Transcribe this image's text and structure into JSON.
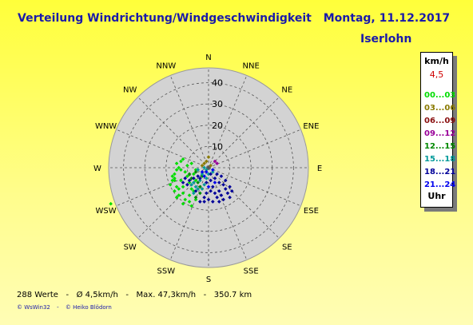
{
  "header": {
    "title": "Verteilung Windrichtung/Windgeschwindigkeit",
    "date": "Montag, 11.12.2017",
    "location": "Iserlohn"
  },
  "legend": {
    "unit": "km/h",
    "average": "4,5",
    "classes": [
      {
        "label": "00...03",
        "color": "#00dd00"
      },
      {
        "label": "03...06",
        "color": "#8a7a00"
      },
      {
        "label": "06...09",
        "color": "#8a1010"
      },
      {
        "label": "09...12",
        "color": "#990099"
      },
      {
        "label": "12...15",
        "color": "#008800"
      },
      {
        "label": "15...18",
        "color": "#009999"
      },
      {
        "label": "18...21",
        "color": "#000099"
      },
      {
        "label": "21...24",
        "color": "#0000ee"
      }
    ],
    "footer_label": "Uhr"
  },
  "footer": {
    "count": "288 Werte",
    "avg": "Ø 4,5km/h",
    "max": "Max. 47,3km/h",
    "distance": "350.7 km",
    "sep": "-"
  },
  "copyright": {
    "a": "© WsWin32",
    "sep": "-",
    "b": "© Heiko Blödorn"
  },
  "chart_data": {
    "type": "scatter",
    "subtype": "polar-wind-rose",
    "directions": [
      "N",
      "NNE",
      "NE",
      "ENE",
      "E",
      "ESE",
      "SE",
      "SSE",
      "S",
      "SSW",
      "SW",
      "WSW",
      "W",
      "WNW",
      "NW",
      "NNW"
    ],
    "radial_ticks": [
      10,
      20,
      30,
      40
    ],
    "rmax": 47,
    "grid": true,
    "colors": {
      "background": "#d3d3d3",
      "grid": "#555555"
    },
    "series": [
      {
        "class_index": 0,
        "points": [
          [
            -16,
            -6
          ],
          [
            -15,
            -1
          ],
          [
            -16,
            -3
          ],
          [
            -17,
            -4
          ],
          [
            -18,
            -8
          ],
          [
            -15,
            -9
          ],
          [
            -14,
            -10
          ],
          [
            -12,
            -9
          ],
          [
            -13,
            -6
          ],
          [
            -14,
            0
          ],
          [
            -15,
            2
          ],
          [
            -13,
            3
          ],
          [
            -11,
            -2
          ],
          [
            -10,
            -4
          ],
          [
            -9,
            -7
          ],
          [
            -8,
            -10
          ],
          [
            -12,
            -12
          ],
          [
            -14,
            -13
          ],
          [
            -9,
            -13
          ],
          [
            -7,
            -11
          ],
          [
            -6,
            -6
          ],
          [
            -7,
            -3
          ],
          [
            -6,
            -1
          ],
          [
            -8,
            2
          ],
          [
            -10,
            1
          ],
          [
            -12,
            4
          ],
          [
            -13,
            -1
          ],
          [
            -16,
            -11
          ],
          [
            -15,
            -14
          ],
          [
            -11,
            -15
          ],
          [
            -9,
            -16
          ],
          [
            -6,
            -15
          ],
          [
            -8,
            -18
          ],
          [
            -12,
            -17
          ],
          [
            -16,
            -5
          ],
          [
            -46,
            -17
          ],
          [
            -17,
            -6
          ]
        ]
      },
      {
        "class_index": 1,
        "points": [
          [
            -2,
            2
          ],
          [
            -1,
            3
          ],
          [
            1,
            1
          ],
          [
            -3,
            1
          ],
          [
            0,
            5
          ]
        ]
      },
      {
        "class_index": 3,
        "points": [
          [
            3,
            3
          ],
          [
            4,
            2
          ]
        ]
      },
      {
        "class_index": 4,
        "points": [
          [
            -6,
            -2
          ],
          [
            -5,
            -7
          ],
          [
            -8,
            -5
          ],
          [
            -4,
            -9
          ],
          [
            -3,
            -4
          ],
          [
            -9,
            -3
          ],
          [
            -4,
            -12
          ],
          [
            -6,
            -14
          ]
        ]
      },
      {
        "class_index": 5,
        "points": [
          [
            -5,
            -1
          ],
          [
            -3,
            -3
          ],
          [
            -2,
            0
          ],
          [
            -4,
            -6
          ],
          [
            -1,
            -5
          ],
          [
            0,
            -3
          ],
          [
            -7,
            -7
          ],
          [
            -3,
            -10
          ],
          [
            -5,
            -10
          ],
          [
            -2,
            -8
          ],
          [
            -6,
            -9
          ],
          [
            -1,
            -1
          ],
          [
            2,
            -2
          ],
          [
            -8,
            -8
          ],
          [
            -7,
            -12
          ]
        ]
      },
      {
        "class_index": 6,
        "points": [
          [
            -4,
            -5
          ],
          [
            -1,
            -7
          ],
          [
            1,
            -6
          ],
          [
            2,
            -9
          ],
          [
            3,
            -12
          ],
          [
            5,
            -11
          ],
          [
            7,
            -8
          ],
          [
            8,
            -10
          ],
          [
            6,
            -13
          ],
          [
            4,
            -14
          ],
          [
            1,
            -11
          ],
          [
            -1,
            -12
          ],
          [
            -2,
            -14
          ],
          [
            0,
            -15
          ],
          [
            2,
            -16
          ],
          [
            5,
            -16
          ],
          [
            7,
            -15
          ],
          [
            9,
            -12
          ],
          [
            10,
            -9
          ],
          [
            8,
            -6
          ],
          [
            5,
            -7
          ],
          [
            3,
            -5
          ],
          [
            1,
            -3
          ],
          [
            -2,
            -16
          ],
          [
            -4,
            -16
          ],
          [
            10,
            -14
          ],
          [
            11,
            -11
          ],
          [
            6,
            -4
          ],
          [
            4,
            -3
          ],
          [
            -7,
            -5
          ],
          [
            -5,
            -4
          ],
          [
            -9,
            -6
          ],
          [
            -11,
            -5
          ],
          [
            -10,
            -8
          ],
          [
            -6,
            -11
          ],
          [
            -12,
            -7
          ]
        ]
      },
      {
        "class_index": 7,
        "points": [
          [
            -3,
            -2
          ],
          [
            -2,
            -4
          ],
          [
            0,
            -9
          ],
          [
            3,
            -7
          ],
          [
            -1,
            -2
          ],
          [
            2,
            -1
          ]
        ]
      }
    ]
  }
}
